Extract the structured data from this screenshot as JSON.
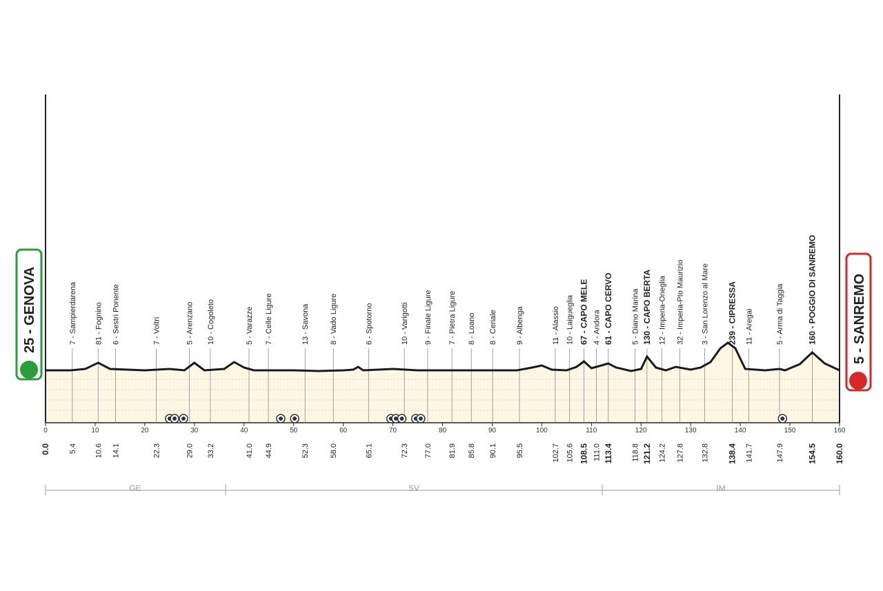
{
  "profile": {
    "start": "25 - GENOVA",
    "finish": "5 - SANREMO",
    "xticks": [
      0,
      10,
      20,
      30,
      40,
      50,
      60,
      70,
      80,
      90,
      100,
      110,
      120,
      130,
      140,
      150,
      160
    ],
    "waypoints": [
      {
        "km": "0.0",
        "name": null,
        "bold": true
      },
      {
        "km": "5.4",
        "name": "7 - Sampierdarena",
        "bold": false
      },
      {
        "km": "10.6",
        "name": "81 - Fognino",
        "bold": false
      },
      {
        "km": "14.1",
        "name": "6 - Sestri Ponente",
        "bold": false
      },
      {
        "km": "22.3",
        "name": "7 - Voltri",
        "bold": false
      },
      {
        "km": "29.0",
        "name": "5 - Arenzano",
        "bold": false
      },
      {
        "km": "33.2",
        "name": "10 - Cogoleto",
        "bold": false
      },
      {
        "km": "41.0",
        "name": "5 - Varazze",
        "bold": false
      },
      {
        "km": "44.9",
        "name": "7 - Celle Ligure",
        "bold": false
      },
      {
        "km": "52.3",
        "name": "13 - Savona",
        "bold": false
      },
      {
        "km": "58.0",
        "name": "8 - Vado Ligure",
        "bold": false
      },
      {
        "km": "65.1",
        "name": "6 - Spotorno",
        "bold": false
      },
      {
        "km": "72.3",
        "name": "10 - Varigotti",
        "bold": false
      },
      {
        "km": "77.0",
        "name": "9 - Finale Ligure",
        "bold": false
      },
      {
        "km": "81.9",
        "name": "7 - Pietra Ligure",
        "bold": false
      },
      {
        "km": "85.8",
        "name": "8 - Loano",
        "bold": false
      },
      {
        "km": "90.1",
        "name": "8 - Ceriale",
        "bold": false
      },
      {
        "km": "95.5",
        "name": "9 - Albenga",
        "bold": false
      },
      {
        "km": "102.7",
        "name": "11 - Alassio",
        "bold": false
      },
      {
        "km": "105.6",
        "name": "10 - Laigueglia",
        "bold": false
      },
      {
        "km": "108.5",
        "name": "67 - CAPO MELE",
        "bold": true
      },
      {
        "km": "111.0",
        "name": "4 - Andora",
        "bold": false
      },
      {
        "km": "113.4",
        "name": "61 - CAPO CERVO",
        "bold": true
      },
      {
        "km": "118.8",
        "name": "5 - Diano Marina",
        "bold": false
      },
      {
        "km": "121.2",
        "name": "130 - CAPO BERTA",
        "bold": true
      },
      {
        "km": "124.2",
        "name": "12 - Imperia-Oneglia",
        "bold": false
      },
      {
        "km": "127.8",
        "name": "32 - Imperia-Pto Maurizio",
        "bold": false
      },
      {
        "km": "132.8",
        "name": "3 - San Lorenzo al Mare",
        "bold": false
      },
      {
        "km": "138.4",
        "name": "239 - CIPRESSA",
        "bold": true
      },
      {
        "km": "141.7",
        "name": "11 - Aregai",
        "bold": false
      },
      {
        "km": "147.9",
        "name": "5 - Arma di Taggia",
        "bold": false
      },
      {
        "km": "154.5",
        "name": "160 - POGGIO DI SANREMO",
        "bold": true
      },
      {
        "km": "160.0",
        "name": null,
        "bold": true
      }
    ],
    "provinces": [
      "GE",
      "SV",
      "IM"
    ]
  }
}
